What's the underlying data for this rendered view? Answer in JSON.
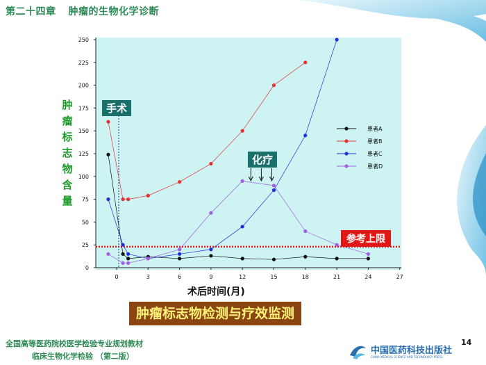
{
  "header": {
    "chapter": "第二十四章",
    "chapter_title": "肿瘤的生物化学诊断"
  },
  "annotations": {
    "surgery": "手术",
    "chemo": "化疗",
    "reference_upper_limit": "参考上限"
  },
  "caption": "肿瘤标志物检测与疗效监测",
  "footer": {
    "line1": "全国高等医药院校医学检验专业规划教材",
    "line2": "临床生物化学检验  （第二版）",
    "page_number": "14",
    "publisher": "中国医药科技出版社",
    "publisher_en": "CHINA MEDICAL SCIENCE AND TECHNOLOGY PRESS"
  },
  "colors": {
    "plot_bg": "#cdf3f3",
    "accent_green": "#2e8b57",
    "ref_line": "#e01818",
    "seriesA": "#111111",
    "seriesB": "#e83030",
    "seriesC": "#2030d8",
    "seriesD": "#a060e0"
  },
  "chart_data": {
    "type": "line",
    "xlabel": "术后时间(月)",
    "ylabel": "肿瘤标志物含量",
    "xlim": [
      -1.5,
      27
    ],
    "ylim": [
      0,
      250
    ],
    "xticks": [
      0,
      3,
      6,
      9,
      12,
      15,
      18,
      21,
      24,
      27
    ],
    "yticks": [
      0,
      25,
      50,
      75,
      100,
      125,
      150,
      175,
      200,
      225,
      250
    ],
    "reference_line": 23,
    "surgery_x": 0.2,
    "chemo_arrow_x": [
      12.8,
      13.8,
      14.8
    ],
    "legend_position": "right",
    "grid": false,
    "series": [
      {
        "name": "患者A",
        "color": "#111111",
        "points": [
          [
            -0.8,
            124
          ],
          [
            0.6,
            15
          ],
          [
            1.1,
            10
          ],
          [
            3,
            12
          ],
          [
            6,
            10
          ],
          [
            9,
            13
          ],
          [
            12,
            10
          ],
          [
            15,
            9
          ],
          [
            18,
            12
          ],
          [
            21,
            10
          ],
          [
            24,
            10
          ]
        ]
      },
      {
        "name": "患者B",
        "color": "#e83030",
        "points": [
          [
            -0.8,
            160
          ],
          [
            0.6,
            75
          ],
          [
            1.1,
            75
          ],
          [
            3,
            79
          ],
          [
            6,
            94
          ],
          [
            9,
            114
          ],
          [
            12,
            150
          ],
          [
            15,
            200
          ],
          [
            18,
            225
          ]
        ]
      },
      {
        "name": "患者C",
        "color": "#2030d8",
        "points": [
          [
            -0.8,
            75
          ],
          [
            0.6,
            25
          ],
          [
            1.1,
            15
          ],
          [
            3,
            10
          ],
          [
            6,
            15
          ],
          [
            9,
            20
          ],
          [
            12,
            45
          ],
          [
            15,
            85
          ],
          [
            18,
            145
          ],
          [
            21,
            250
          ]
        ]
      },
      {
        "name": "患者D",
        "color": "#a060e0",
        "points": [
          [
            -0.8,
            15
          ],
          [
            0.6,
            5
          ],
          [
            1.1,
            5
          ],
          [
            3,
            10
          ],
          [
            6,
            20
          ],
          [
            9,
            60
          ],
          [
            12,
            95
          ],
          [
            15,
            90
          ],
          [
            18,
            40
          ],
          [
            21,
            25
          ],
          [
            24,
            15
          ]
        ]
      }
    ]
  }
}
